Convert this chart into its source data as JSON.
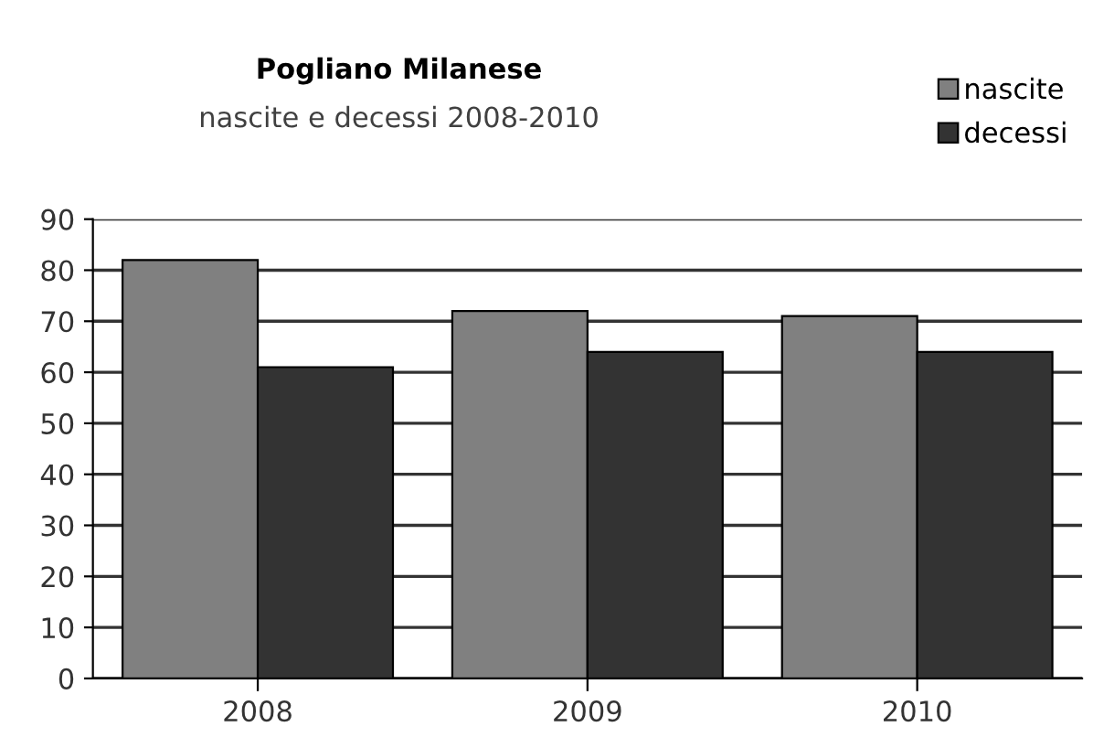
{
  "chart_data": {
    "type": "bar",
    "title": "Pogliano Milanese",
    "subtitle": "nascite e decessi 2008-2010",
    "categories": [
      "2008",
      "2009",
      "2010"
    ],
    "series": [
      {
        "name": "nascite",
        "color": "#808080",
        "values": [
          82,
          72,
          71
        ]
      },
      {
        "name": "decessi",
        "color": "#333333",
        "values": [
          61,
          64,
          64
        ]
      }
    ],
    "ylim": [
      0,
      90
    ],
    "yticks": [
      0,
      10,
      20,
      30,
      40,
      50,
      60,
      70,
      80,
      90
    ],
    "grid": "y",
    "legend": "top right"
  }
}
